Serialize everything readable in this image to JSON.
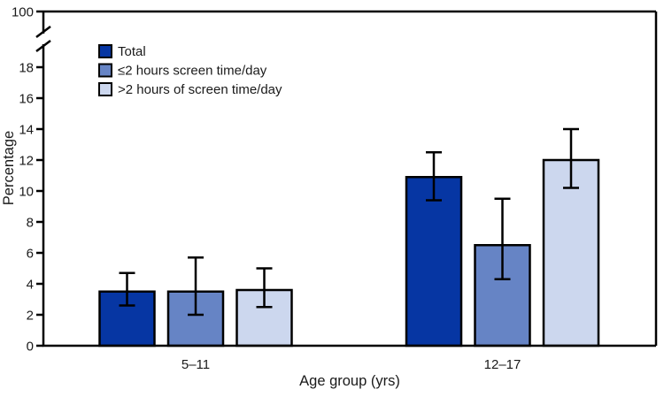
{
  "figure": {
    "background": "#ffffff",
    "text_color": "#1a1a1a",
    "axis_color": "#000000",
    "bar_outline_color": "#000000",
    "error_bar_color": "#000000"
  },
  "chart_data": {
    "type": "bar",
    "title": "",
    "xlabel": "Age group (yrs)",
    "ylabel": "Percentage",
    "categories": [
      "5–11",
      "12–17"
    ],
    "series": [
      {
        "name": "Total",
        "color": "#0636a3",
        "values": [
          3.5,
          10.9
        ],
        "ci_low": [
          2.6,
          9.4
        ],
        "ci_high": [
          4.7,
          12.5
        ]
      },
      {
        "name": "≤2 hours screen time/day",
        "color": "#6684c5",
        "values": [
          3.5,
          6.5
        ],
        "ci_low": [
          2.0,
          4.3
        ],
        "ci_high": [
          5.7,
          9.5
        ]
      },
      {
        "name": ">2 hours of screen time/day",
        "color": "#ccd7ee",
        "values": [
          3.6,
          12.0
        ],
        "ci_low": [
          2.5,
          10.2
        ],
        "ci_high": [
          5.0,
          14.0
        ]
      }
    ],
    "y_ticks": [
      0,
      2,
      4,
      6,
      8,
      10,
      12,
      14,
      16,
      18
    ],
    "y_break_label": "100",
    "ylim": [
      0,
      18
    ],
    "axis_break": true,
    "error_bars": true,
    "grid": false,
    "legend_position": "top-left"
  }
}
